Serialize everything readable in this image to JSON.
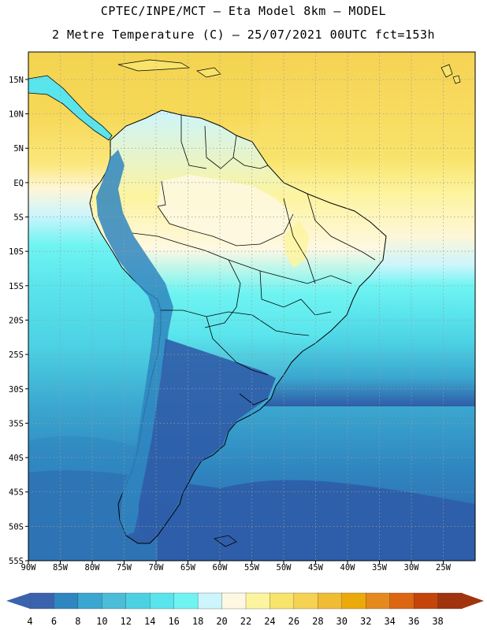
{
  "header": {
    "line1": "CPTEC/INPE/MCT –  Eta Model 8km – MODEL",
    "line2": "2 Metre Temperature (C) – 25/07/2021 00UTC fct=153h"
  },
  "axes": {
    "lon_ticks": [
      "90W",
      "85W",
      "80W",
      "75W",
      "70W",
      "65W",
      "60W",
      "55W",
      "50W",
      "45W",
      "40W",
      "35W",
      "30W",
      "25W"
    ],
    "lat_ticks": [
      "15N",
      "10N",
      "5N",
      "EQ",
      "5S",
      "10S",
      "15S",
      "20S",
      "25S",
      "30S",
      "35S",
      "40S",
      "45S",
      "50S",
      "55S"
    ],
    "lon_range": [
      -90,
      -20
    ],
    "lat_range": [
      -55,
      19
    ]
  },
  "colorbar": {
    "labels": [
      "4",
      "6",
      "8",
      "10",
      "12",
      "14",
      "16",
      "18",
      "20",
      "22",
      "24",
      "26",
      "28",
      "30",
      "32",
      "34",
      "36",
      "38"
    ],
    "colors": [
      "#3b63ad",
      "#2f86c0",
      "#3ba6cf",
      "#4bbdd8",
      "#4cd1e3",
      "#5ae4ec",
      "#6ff4f2",
      "#cdf5fc",
      "#fef8e3",
      "#fdf49f",
      "#f8e36b",
      "#f6d252",
      "#f0bc34",
      "#ecaa0a",
      "#e48a1d",
      "#dd6613",
      "#c44509",
      "#a0340e"
    ]
  },
  "legend_colors": {
    "ocean_cold": "#2f5da8",
    "ocean_cool": "#3ba6cf",
    "ocean_mid": "#5ae4ec",
    "ocean_warm": "#fef6d8",
    "ocean_hot": "#f6d252",
    "land_cold": "#2f5da8",
    "land_mid": "#4bbdd8",
    "land_warm": "#fdf49f"
  }
}
